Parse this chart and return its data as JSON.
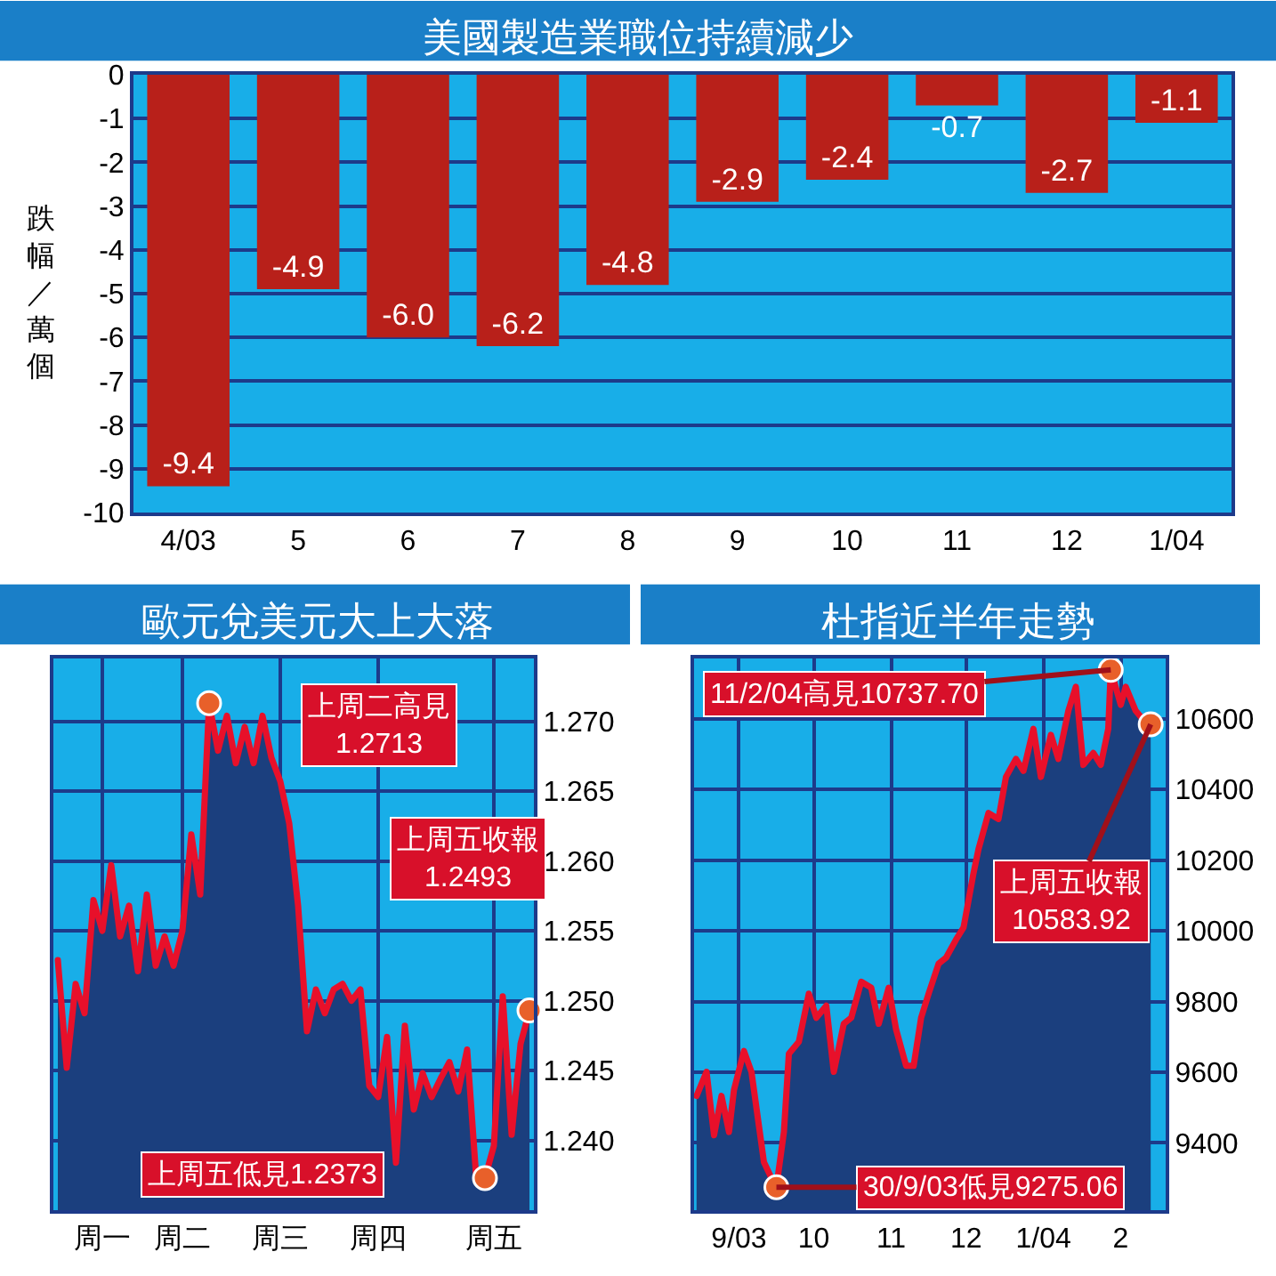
{
  "chart_data": [
    {
      "type": "bar",
      "title": "美國製造業職位持續減少",
      "ylabel": "跌幅／萬個",
      "categories": [
        "4/03",
        "5",
        "6",
        "7",
        "8",
        "9",
        "10",
        "11",
        "12",
        "1/04"
      ],
      "values": [
        -9.4,
        -4.9,
        -6.0,
        -6.2,
        -4.8,
        -2.9,
        -2.4,
        -0.7,
        -2.7,
        -1.1
      ],
      "value_labels": [
        "-9.4",
        "-4.9",
        "-6.0",
        "-6.2",
        "-4.8",
        "-2.9",
        "-2.4",
        "-0.7",
        "-2.7",
        "-1.1"
      ],
      "color": "#b8201a",
      "ylim": [
        -10,
        0
      ],
      "yticks": [
        0,
        -1,
        -2,
        -3,
        -4,
        -5,
        -6,
        -7,
        -8,
        -9,
        -10
      ],
      "grid": "y"
    },
    {
      "type": "area",
      "title": "歐元兌美元大上大落",
      "categories": [
        null,
        null,
        null,
        null,
        null,
        "周一",
        null,
        null,
        null,
        null,
        null,
        null,
        null,
        null,
        "周二",
        null,
        null,
        null,
        null,
        null,
        null,
        null,
        null,
        null,
        null,
        "周三",
        null,
        null,
        null,
        null,
        null,
        null,
        null,
        null,
        null,
        null,
        "周四",
        null,
        null,
        null,
        null,
        null,
        null,
        null,
        null,
        null,
        null,
        null,
        null,
        "周五",
        null,
        null,
        null,
        null
      ],
      "ylim": [
        1.235,
        1.2745
      ],
      "yticks": [
        {
          "value": 1.24,
          "label": "1.240"
        },
        1.245,
        {
          "value": 1.25,
          "label": "1.250"
        },
        1.255,
        {
          "value": 1.26,
          "label": "1.260"
        },
        1.265,
        {
          "value": 1.27,
          "label": "1.270"
        }
      ],
      "grid": true,
      "series": [
        {
          "color": "#1b3f7e",
          "values": [
            1.2529,
            1.2452,
            1.2512,
            1.2491,
            1.2572,
            1.255,
            1.2597,
            1.2546,
            1.2568,
            1.2521,
            1.2576,
            1.2525,
            1.2546,
            1.2525,
            1.255,
            1.2619,
            1.2576,
            1.2713,
            1.2679,
            1.2704,
            1.267,
            1.2696,
            1.267,
            1.2704,
            1.2674,
            1.2657,
            1.2627,
            1.2568,
            1.2478,
            1.2508,
            1.2491,
            1.2508,
            1.2512,
            1.25,
            1.2508,
            1.2439,
            1.2431,
            1.2474,
            1.2384,
            1.2482,
            1.2422,
            1.2448,
            1.2431,
            1.2444,
            1.2456,
            1.2435,
            1.2465,
            1.2375,
            1.2373,
            1.2396,
            1.2503,
            1.2404,
            1.2469,
            1.2493
          ]
        },
        {
          "type": "line",
          "color": "#e8102a",
          "values": [
            1.2529,
            1.2452,
            1.2512,
            1.2491,
            1.2572,
            1.255,
            1.2597,
            1.2546,
            1.2568,
            1.2521,
            1.2576,
            1.2525,
            1.2546,
            1.2525,
            1.255,
            1.2619,
            1.2576,
            1.2713,
            1.2679,
            1.2704,
            1.267,
            1.2696,
            1.267,
            1.2704,
            1.2674,
            1.2657,
            1.2627,
            1.2568,
            1.2478,
            1.2508,
            1.2491,
            1.2508,
            1.2512,
            1.25,
            1.2508,
            1.2439,
            1.2431,
            1.2474,
            1.2384,
            1.2482,
            1.2422,
            1.2448,
            1.2431,
            1.2444,
            1.2456,
            1.2435,
            1.2465,
            1.2375,
            1.2373,
            1.2396,
            1.2503,
            1.2404,
            1.2469,
            1.2493
          ]
        },
        {
          "type": "scatter",
          "color": "#e8602a",
          "values": [
            null,
            null,
            null,
            null,
            null,
            null,
            null,
            null,
            null,
            null,
            null,
            null,
            null,
            null,
            null,
            null,
            null,
            1.2713,
            null,
            null,
            null,
            null,
            null,
            null,
            null,
            null,
            null,
            null,
            null,
            null,
            null,
            null,
            null,
            null,
            null,
            null,
            null,
            null,
            null,
            null,
            null,
            null,
            null,
            null,
            null,
            null,
            null,
            null,
            1.2373,
            null,
            null,
            null,
            null,
            1.2493
          ]
        }
      ],
      "annotations": [
        "上周二高見\n1.2713",
        "上周五低見1.2373",
        "上周五收報\n1.2493"
      ]
    },
    {
      "type": "area",
      "title": "杜指近半年走勢",
      "xlim": [
        "2003-08-28",
        "2004-03-04"
      ],
      "xticks": [
        {
          "value": "2003-09-15",
          "label": "9/03"
        },
        {
          "value": "2003-10-15",
          "label": "10"
        },
        {
          "value": "2003-11-15",
          "label": "11"
        },
        {
          "value": "2003-12-15",
          "label": "12"
        },
        {
          "value": "2004-01-15",
          "label": "1/04"
        },
        {
          "value": "2004-02-15",
          "label": "2"
        }
      ],
      "ylim": [
        9210,
        10770
      ],
      "yticks": [
        9400,
        9600,
        9800,
        10000,
        10200,
        10400,
        10600
      ],
      "grid": true,
      "series": [
        {
          "color": "#1b3f7e",
          "x": [
            "2003-08-29",
            "2003-09-02",
            "2003-09-05",
            "2003-09-08",
            "2003-09-11",
            "2003-09-13",
            "2003-09-17",
            "2003-09-20",
            "2003-09-23",
            "2003-09-25",
            "2003-09-29",
            "2003-09-30",
            "2003-10-03",
            "2003-10-05",
            "2003-10-09",
            "2003-10-13",
            "2003-10-16",
            "2003-10-20",
            "2003-10-23",
            "2003-10-27",
            "2003-10-30",
            "2003-11-03",
            "2003-11-07",
            "2003-11-10",
            "2003-11-14",
            "2003-11-17",
            "2003-11-21",
            "2003-11-24",
            "2003-11-27",
            "2003-11-30",
            "2003-12-04",
            "2003-12-07",
            "2003-12-11",
            "2003-12-14",
            "2003-12-18",
            "2003-12-20",
            "2003-12-24",
            "2003-12-28",
            "2003-12-31",
            "2004-01-04",
            "2004-01-07",
            "2004-01-11",
            "2004-01-14",
            "2004-01-18",
            "2004-01-21",
            "2004-01-25",
            "2004-01-28",
            "2004-01-31",
            "2004-02-04",
            "2004-02-07",
            "2004-02-10",
            "2004-02-11",
            "2004-02-15",
            "2004-02-17",
            "2004-02-21",
            "2004-02-25",
            "2004-02-27"
          ],
          "values": [
            9533,
            9601,
            9422,
            9533,
            9431,
            9550,
            9660,
            9601,
            9448,
            9346,
            9286,
            9275.06,
            9431,
            9652,
            9686,
            9822,
            9754,
            9788,
            9601,
            9737,
            9754,
            9856,
            9839,
            9737,
            9839,
            9720,
            9618,
            9618,
            9754,
            9822,
            9907,
            9924,
            9975,
            10009,
            10163,
            10231,
            10333,
            10316,
            10435,
            10486,
            10452,
            10571,
            10435,
            10554,
            10486,
            10622,
            10690,
            10469,
            10503,
            10469,
            10571,
            10737.7,
            10639,
            10690,
            10622,
            10588,
            10583.92
          ]
        },
        {
          "type": "line",
          "color": "#e8102a",
          "x": [
            "2003-08-29",
            "2003-09-02",
            "2003-09-05",
            "2003-09-08",
            "2003-09-11",
            "2003-09-13",
            "2003-09-17",
            "2003-09-20",
            "2003-09-23",
            "2003-09-25",
            "2003-09-29",
            "2003-09-30",
            "2003-10-03",
            "2003-10-05",
            "2003-10-09",
            "2003-10-13",
            "2003-10-16",
            "2003-10-20",
            "2003-10-23",
            "2003-10-27",
            "2003-10-30",
            "2003-11-03",
            "2003-11-07",
            "2003-11-10",
            "2003-11-14",
            "2003-11-17",
            "2003-11-21",
            "2003-11-24",
            "2003-11-27",
            "2003-11-30",
            "2003-12-04",
            "2003-12-07",
            "2003-12-11",
            "2003-12-14",
            "2003-12-18",
            "2003-12-20",
            "2003-12-24",
            "2003-12-28",
            "2003-12-31",
            "2004-01-04",
            "2004-01-07",
            "2004-01-11",
            "2004-01-14",
            "2004-01-18",
            "2004-01-21",
            "2004-01-25",
            "2004-01-28",
            "2004-01-31",
            "2004-02-04",
            "2004-02-07",
            "2004-02-10",
            "2004-02-11",
            "2004-02-15",
            "2004-02-17",
            "2004-02-21",
            "2004-02-25",
            "2004-02-27"
          ],
          "values": [
            9533,
            9601,
            9422,
            9533,
            9431,
            9550,
            9660,
            9601,
            9448,
            9346,
            9286,
            9275.06,
            9431,
            9652,
            9686,
            9822,
            9754,
            9788,
            9601,
            9737,
            9754,
            9856,
            9839,
            9737,
            9839,
            9720,
            9618,
            9618,
            9754,
            9822,
            9907,
            9924,
            9975,
            10009,
            10163,
            10231,
            10333,
            10316,
            10435,
            10486,
            10452,
            10571,
            10435,
            10554,
            10486,
            10622,
            10690,
            10469,
            10503,
            10469,
            10571,
            10737.7,
            10639,
            10690,
            10622,
            10588,
            10583.92
          ]
        },
        {
          "type": "scatter",
          "color": "#e8602a",
          "x": [
            "2004-02-11",
            "2003-09-30",
            "2004-02-27"
          ],
          "values": [
            10737.7,
            9275.06,
            10583.92
          ]
        }
      ],
      "annotations": [
        {
          "text": "11/2/04高見10737.70",
          "x": "2004-02-11",
          "y": 10737.7
        },
        {
          "text": "30/9/03低見9275.06",
          "x": "2003-09-30",
          "y": 9275.06
        },
        {
          "text": "上周五收報\n10583.92",
          "x": "2004-02-27",
          "y": 10583.92
        }
      ]
    }
  ]
}
